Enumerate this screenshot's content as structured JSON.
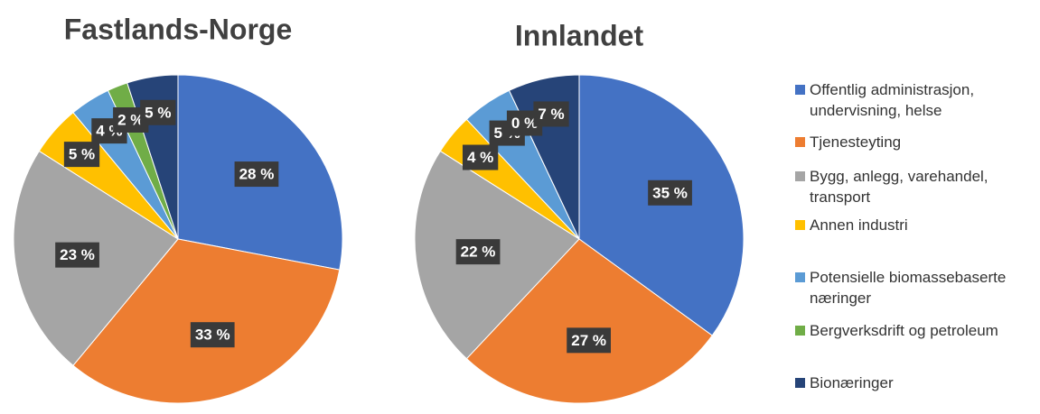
{
  "chart_data": [
    {
      "type": "pie",
      "title": "Fastlands-Norge",
      "categories": [
        "Offentlig administrasjon, undervisning, helse",
        "Tjenesteyting",
        "Bygg, anlegg, varehandel, transport",
        "Annen industri",
        "Potensielle biomassebaserte næringer",
        "Bergverksdrift og petroleum",
        "Bionæringer"
      ],
      "colors": [
        "#4472c4",
        "#ed7d31",
        "#a5a5a5",
        "#ffc000",
        "#5b9bd5",
        "#70ad47",
        "#264478"
      ],
      "values": [
        28,
        33,
        23,
        5,
        4,
        2,
        5
      ],
      "value_labels": [
        "28 %",
        "33 %",
        "23 %",
        "5 %",
        "4 %",
        "2 %",
        "5 %"
      ]
    },
    {
      "type": "pie",
      "title": "Innlandet",
      "values": [
        35,
        27,
        22,
        4,
        5,
        0,
        7
      ],
      "value_labels": [
        "35 %",
        "27 %",
        "22 %",
        "4 %",
        "5 %",
        "0 %",
        "7 %"
      ]
    }
  ]
}
